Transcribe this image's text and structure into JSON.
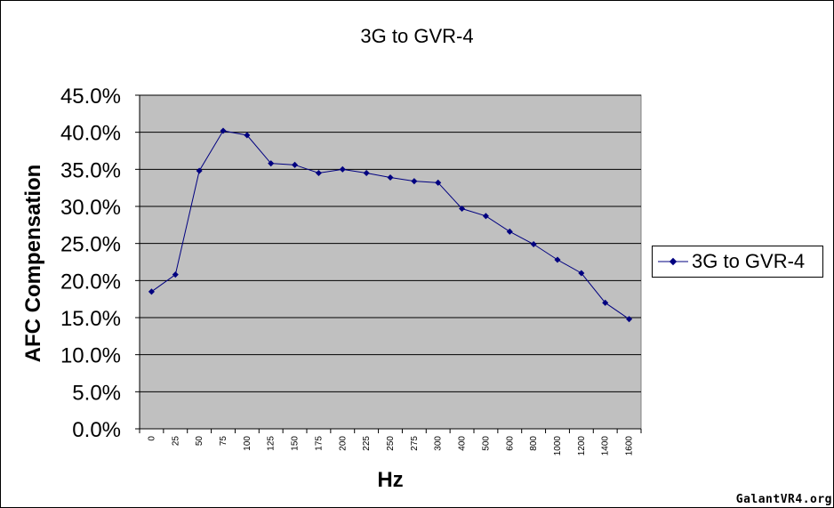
{
  "chart_data": {
    "type": "line",
    "title": "3G to GVR-4",
    "xlabel": "Hz",
    "ylabel": "AFC Compensation",
    "categories": [
      "0",
      "25",
      "50",
      "75",
      "100",
      "125",
      "150",
      "175",
      "200",
      "225",
      "250",
      "275",
      "300",
      "400",
      "500",
      "600",
      "800",
      "1000",
      "1200",
      "1400",
      "1600"
    ],
    "series": [
      {
        "name": "3G to GVR-4",
        "values": [
          0.185,
          0.208,
          0.348,
          0.402,
          0.396,
          0.358,
          0.356,
          0.345,
          0.35,
          0.345,
          0.339,
          0.334,
          0.332,
          0.297,
          0.287,
          0.266,
          0.249,
          0.228,
          0.21,
          0.17,
          0.148
        ],
        "color": "#000080"
      }
    ],
    "ylim": [
      0,
      0.45
    ],
    "yticks": [
      0,
      0.05,
      0.1,
      0.15,
      0.2,
      0.25,
      0.3,
      0.35,
      0.4,
      0.45
    ],
    "ytick_labels": [
      "0.0%",
      "5.0%",
      "10.0%",
      "15.0%",
      "20.0%",
      "25.0%",
      "30.0%",
      "35.0%",
      "40.0%",
      "45.0%"
    ],
    "grid": true,
    "plot_background": "#c0c0c0",
    "legend_position": "right"
  },
  "watermark": "GalantVR4.org"
}
